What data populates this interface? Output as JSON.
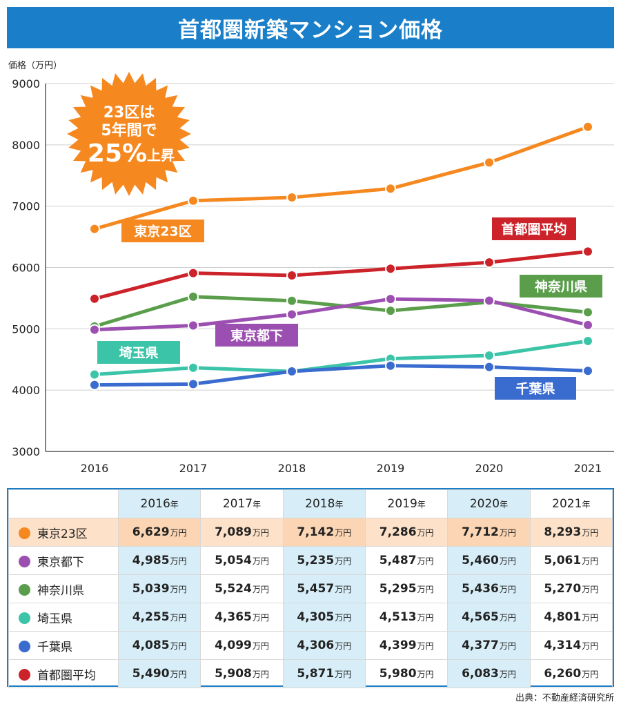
{
  "title": "首都圏新築マンション価格",
  "source": "出典：不動産経済研究所",
  "chart_data": {
    "type": "line",
    "ylabel": "価格（万円）",
    "ylim": [
      3000,
      9000
    ],
    "yticks": [
      3000,
      4000,
      5000,
      6000,
      7000,
      8000,
      9000
    ],
    "categories": [
      "2016",
      "2017",
      "2018",
      "2019",
      "2020",
      "2021"
    ],
    "grid": true,
    "series": [
      {
        "name": "東京23区",
        "color": "#f5881f",
        "values": [
          6629,
          7089,
          7142,
          7286,
          7712,
          8293
        ]
      },
      {
        "name": "首都圏平均",
        "color": "#cc2229",
        "values": [
          5490,
          5908,
          5871,
          5980,
          6083,
          6260
        ]
      },
      {
        "name": "神奈川県",
        "color": "#5a9e4b",
        "values": [
          5039,
          5524,
          5457,
          5295,
          5436,
          5270
        ]
      },
      {
        "name": "東京都下",
        "color": "#9b4fb0",
        "values": [
          4985,
          5054,
          5235,
          5487,
          5460,
          5061
        ]
      },
      {
        "name": "埼玉県",
        "color": "#3cc4a8",
        "values": [
          4255,
          4365,
          4305,
          4513,
          4565,
          4801
        ]
      },
      {
        "name": "千葉県",
        "color": "#3a6bcf",
        "values": [
          4085,
          4099,
          4306,
          4399,
          4377,
          4314
        ]
      }
    ],
    "annotation": {
      "line1": "23区は",
      "line2": "5年間で",
      "big": "25%",
      "suffix": "上昇",
      "color": "#f5881f"
    }
  },
  "table": {
    "year_suffix": "年",
    "unit": "万円",
    "years": [
      "2016",
      "2017",
      "2018",
      "2019",
      "2020",
      "2021"
    ],
    "rows": [
      {
        "name": "東京23区",
        "color": "#f5881f",
        "values": [
          "6,629",
          "7,089",
          "7,142",
          "7,286",
          "7,712",
          "8,293"
        ]
      },
      {
        "name": "東京都下",
        "color": "#9b4fb0",
        "values": [
          "4,985",
          "5,054",
          "5,235",
          "5,487",
          "5,460",
          "5,061"
        ]
      },
      {
        "name": "神奈川県",
        "color": "#5a9e4b",
        "values": [
          "5,039",
          "5,524",
          "5,457",
          "5,295",
          "5,436",
          "5,270"
        ]
      },
      {
        "name": "埼玉県",
        "color": "#3cc4a8",
        "values": [
          "4,255",
          "4,365",
          "4,305",
          "4,513",
          "4,565",
          "4,801"
        ]
      },
      {
        "name": "千葉県",
        "color": "#3a6bcf",
        "values": [
          "4,085",
          "4,099",
          "4,306",
          "4,399",
          "4,377",
          "4,314"
        ]
      },
      {
        "name": "首都圏平均",
        "color": "#cc2229",
        "values": [
          "5,490",
          "5,908",
          "5,871",
          "5,980",
          "6,083",
          "6,260"
        ]
      }
    ]
  }
}
